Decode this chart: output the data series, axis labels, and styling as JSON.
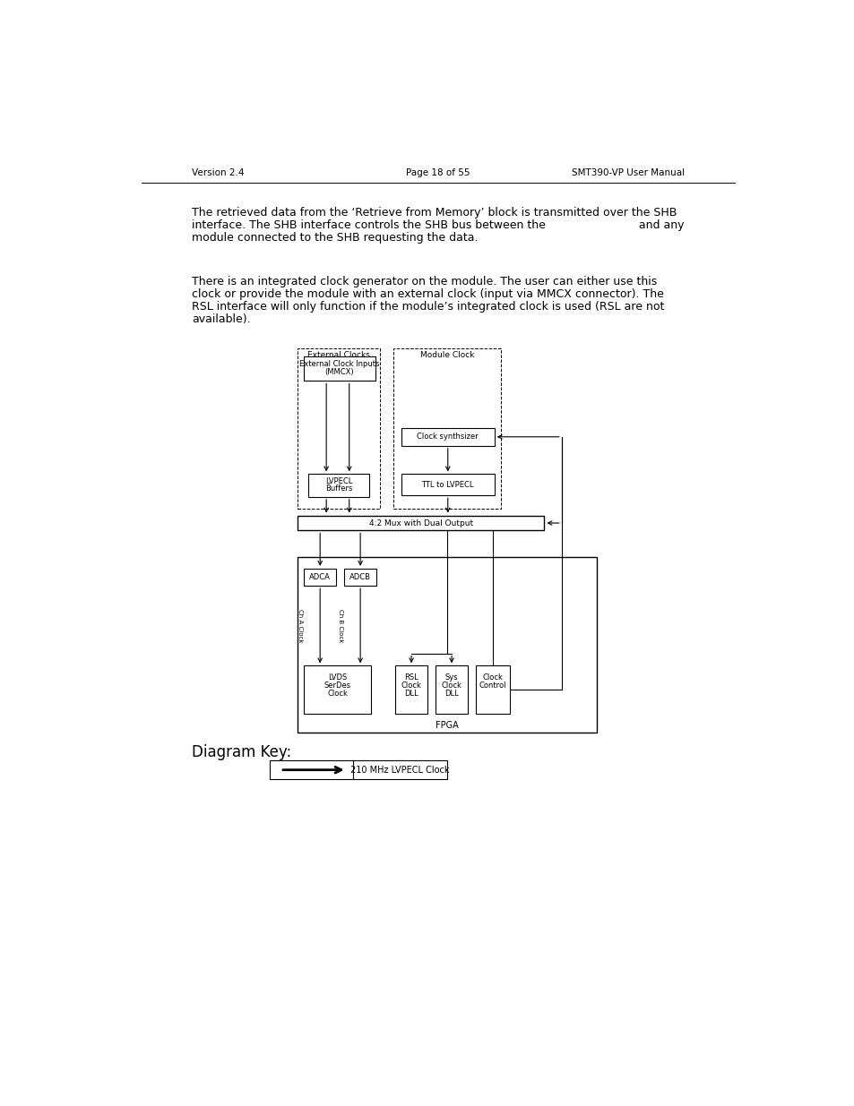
{
  "header_left": "Version 2.4",
  "header_center": "Page 18 of 55",
  "header_right": "SMT390-VP User Manual",
  "para1_lines": [
    "The retrieved data from the ‘Retrieve from Memory’ block is transmitted over the SHB",
    "interface. The SHB interface controls the SHB bus between the                          and any",
    "module connected to the SHB requesting the data."
  ],
  "para2_lines": [
    "There is an integrated clock generator on the module. The user can either use this",
    "clock or provide the module with an external clock (input via MMCX connector). The",
    "RSL interface will only function if the module’s integrated clock is used (RSL are not",
    "available)."
  ],
  "diagram_key_label": "Diagram Key:",
  "key_arrow_label": "210 MHz LVPECL Clock",
  "bg_color": "#ffffff",
  "text_color": "#000000"
}
